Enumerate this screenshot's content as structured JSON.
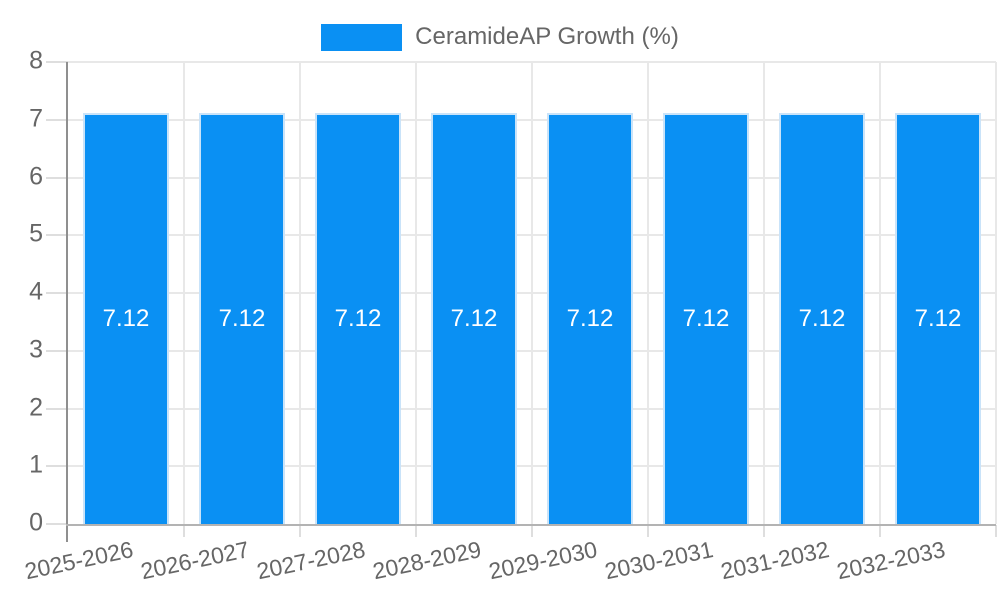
{
  "chart_data": {
    "type": "bar",
    "title": "",
    "legend": {
      "position": "top",
      "entries": [
        {
          "label": "CeramideAP Growth (%)",
          "color": "#0a90f3"
        }
      ]
    },
    "categories": [
      "2025-2026",
      "2026-2027",
      "2027-2028",
      "2028-2029",
      "2029-2030",
      "2030-2031",
      "2031-2032",
      "2032-2033"
    ],
    "series": [
      {
        "name": "CeramideAP Growth (%)",
        "values": [
          7.12,
          7.12,
          7.12,
          7.12,
          7.12,
          7.12,
          7.12,
          7.12
        ]
      }
    ],
    "bar_value_labels": [
      "7.12",
      "7.12",
      "7.12",
      "7.12",
      "7.12",
      "7.12",
      "7.12",
      "7.12"
    ],
    "xlabel": "",
    "ylabel": "",
    "ylim": [
      0,
      8
    ],
    "yticks": [
      "0",
      "1",
      "2",
      "3",
      "4",
      "5",
      "6",
      "7",
      "8"
    ],
    "grid": true,
    "x_label_rotation_deg": -12,
    "colors": {
      "bar_fill": "#0a90f3",
      "bar_border": "#c9e3f9",
      "bar_label": "#ffffff",
      "grid_line": "#e8e8e8",
      "tick_mark": "#dedede",
      "y_axis_line": "#8f8f8f",
      "x_axis_line": "#b3b3b3",
      "tick_label": "#666666",
      "background": "#ffffff"
    }
  }
}
